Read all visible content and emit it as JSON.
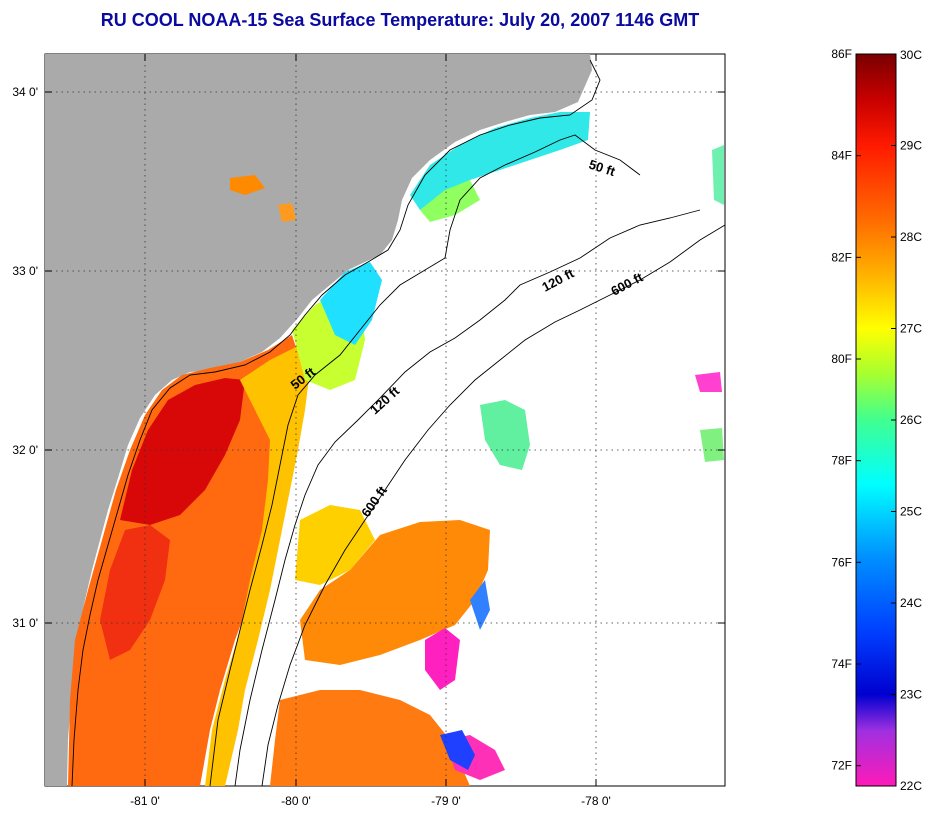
{
  "title": "RU COOL  NOAA-15  Sea Surface Temperature:  July 20, 2007 1146 GMT",
  "map": {
    "lat_ticks": [
      {
        "value": 34,
        "label": "34 0'"
      },
      {
        "value": 33,
        "label": "33 0'"
      },
      {
        "value": 32,
        "label": "32 0'"
      },
      {
        "value": 31,
        "label": "31 0'"
      }
    ],
    "lon_ticks": [
      {
        "value": -81,
        "label": "-81 0'"
      },
      {
        "value": -80,
        "label": "-80 0'"
      },
      {
        "value": -79,
        "label": "-79 0'"
      },
      {
        "value": -78,
        "label": "-78 0'"
      }
    ],
    "contour_labels": [
      {
        "id": "label-50ft-north",
        "text": "50 ft"
      },
      {
        "id": "label-120ft-north",
        "text": "120 ft"
      },
      {
        "id": "label-600ft-north",
        "text": "600 ft"
      },
      {
        "id": "label-50ft-south",
        "text": "50 ft"
      },
      {
        "id": "label-120ft-south",
        "text": "120 ft"
      },
      {
        "id": "label-600ft-south",
        "text": "600 ft"
      }
    ],
    "colors": {
      "land": "#aaaaaa",
      "no_data": "#ffffff",
      "contour": "#000000"
    }
  },
  "colorbar": {
    "range_c": [
      22,
      30
    ],
    "range_f": [
      72,
      86
    ],
    "celsius_labels": [
      "30C",
      "29C",
      "28C",
      "27C",
      "26C",
      "25C",
      "24C",
      "23C",
      "22C"
    ],
    "fahrenheit_labels": [
      {
        "value": 86,
        "label": "86F"
      },
      {
        "value": 84,
        "label": "84F"
      },
      {
        "value": 82,
        "label": "82F"
      },
      {
        "value": 80,
        "label": "80F"
      },
      {
        "value": 78,
        "label": "78F"
      },
      {
        "value": 76,
        "label": "76F"
      },
      {
        "value": 74,
        "label": "74F"
      },
      {
        "value": 72,
        "label": "72F"
      }
    ],
    "gradient": [
      {
        "c": 30,
        "color": "#7a0000"
      },
      {
        "c": 29.5,
        "color": "#c80000"
      },
      {
        "c": 29,
        "color": "#ff1a00"
      },
      {
        "c": 28.2,
        "color": "#ff6a00"
      },
      {
        "c": 27.6,
        "color": "#ffb000"
      },
      {
        "c": 27,
        "color": "#ffff00"
      },
      {
        "c": 26.5,
        "color": "#a6ff30"
      },
      {
        "c": 26,
        "color": "#40ff90"
      },
      {
        "c": 25.3,
        "color": "#00ffff"
      },
      {
        "c": 24.5,
        "color": "#0090ff"
      },
      {
        "c": 23.7,
        "color": "#0040ff"
      },
      {
        "c": 23,
        "color": "#0000d0"
      },
      {
        "c": 22.6,
        "color": "#a030e0"
      },
      {
        "c": 22,
        "color": "#ff1ab8"
      }
    ]
  }
}
